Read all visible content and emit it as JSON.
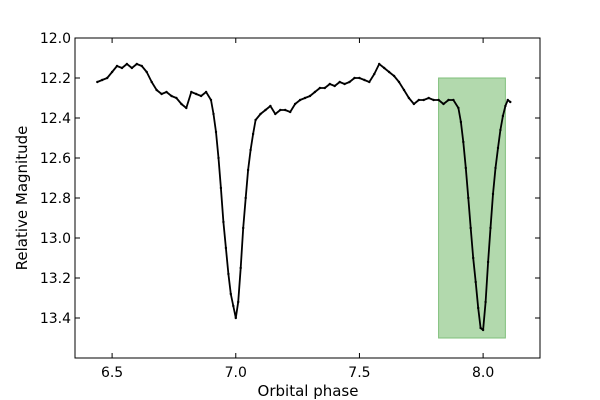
{
  "chart_data": {
    "type": "scatter",
    "title": "",
    "xlabel": "Orbital phase",
    "ylabel": "Relative Magnitude",
    "xlim": [
      6.35,
      8.23
    ],
    "ylim": [
      13.6,
      12.0
    ],
    "y_inverted": true,
    "xticks": [
      6.5,
      7.0,
      7.5,
      8.0
    ],
    "xtick_labels": [
      "6.5",
      "7.0",
      "7.5",
      "8.0"
    ],
    "yticks": [
      12.0,
      12.2,
      12.4,
      12.6,
      12.8,
      13.0,
      13.2,
      13.4
    ],
    "ytick_labels": [
      "12.0",
      "12.2",
      "12.4",
      "12.6",
      "12.8",
      "13.0",
      "13.2",
      "13.4"
    ],
    "grid": false,
    "legend": "none",
    "marker_color": "#000000",
    "highlight_region": {
      "x": [
        7.82,
        8.09
      ],
      "y": [
        12.2,
        13.5
      ],
      "color": "#b2d9ad",
      "edge_color": "#7fbf7a"
    },
    "series": [
      {
        "x": [
          6.44,
          6.46,
          6.48,
          6.5,
          6.52,
          6.54,
          6.56,
          6.58,
          6.6,
          6.62,
          6.64,
          6.66,
          6.68,
          6.7,
          6.72,
          6.74,
          6.76,
          6.78,
          6.8,
          6.82,
          6.84,
          6.86,
          6.88,
          6.9,
          6.91,
          6.92,
          6.93,
          6.94,
          6.95,
          6.96,
          6.97,
          6.98,
          6.99,
          7.0,
          7.01,
          7.02,
          7.03,
          7.04,
          7.05,
          7.06,
          7.07,
          7.08,
          7.1,
          7.12,
          7.14,
          7.16,
          7.18,
          7.2,
          7.22,
          7.24,
          7.26,
          7.28,
          7.3,
          7.32,
          7.34,
          7.36,
          7.38,
          7.4,
          7.42,
          7.44,
          7.46,
          7.48,
          7.5,
          7.52,
          7.54,
          7.56,
          7.58,
          7.6,
          7.62,
          7.64,
          7.66,
          7.68,
          7.7,
          7.72,
          7.74,
          7.76,
          7.78,
          7.8,
          7.82,
          7.84,
          7.86,
          7.88,
          7.9,
          7.91,
          7.92,
          7.93,
          7.94,
          7.95,
          7.96,
          7.97,
          7.98,
          7.99,
          8.0,
          8.01,
          8.02,
          8.03,
          8.04,
          8.05,
          8.06,
          8.07,
          8.08,
          8.09,
          8.1,
          8.11
        ],
        "y": [
          12.22,
          12.21,
          12.2,
          12.17,
          12.14,
          12.15,
          12.13,
          12.15,
          12.13,
          12.14,
          12.17,
          12.22,
          12.26,
          12.28,
          12.27,
          12.29,
          12.3,
          12.33,
          12.35,
          12.27,
          12.28,
          12.29,
          12.27,
          12.31,
          12.38,
          12.47,
          12.6,
          12.75,
          12.92,
          13.05,
          13.18,
          13.28,
          13.34,
          13.4,
          13.32,
          13.15,
          12.95,
          12.8,
          12.66,
          12.56,
          12.48,
          12.41,
          12.38,
          12.36,
          12.34,
          12.38,
          12.36,
          12.36,
          12.37,
          12.33,
          12.31,
          12.3,
          12.29,
          12.27,
          12.25,
          12.25,
          12.23,
          12.24,
          12.22,
          12.23,
          12.22,
          12.2,
          12.2,
          12.21,
          12.22,
          12.18,
          12.13,
          12.15,
          12.17,
          12.19,
          12.22,
          12.26,
          12.3,
          12.33,
          12.31,
          12.31,
          12.3,
          12.31,
          12.31,
          12.33,
          12.31,
          12.31,
          12.35,
          12.42,
          12.52,
          12.65,
          12.8,
          12.95,
          13.1,
          13.22,
          13.35,
          13.45,
          13.46,
          13.32,
          13.12,
          12.95,
          12.78,
          12.65,
          12.55,
          12.46,
          12.39,
          12.34,
          12.31,
          12.32
        ]
      }
    ]
  }
}
